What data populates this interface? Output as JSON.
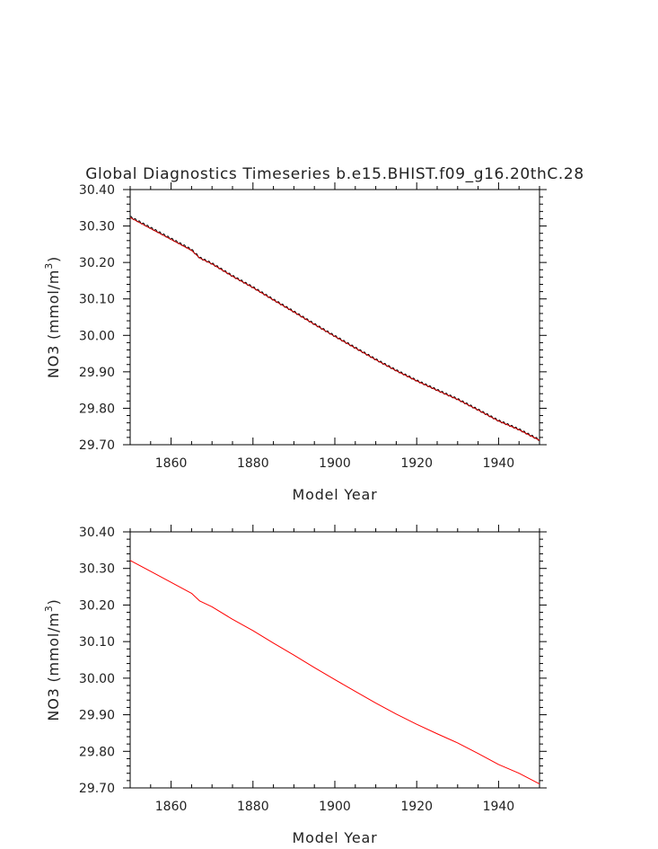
{
  "chart_data": [
    {
      "type": "line",
      "title": "Global Diagnostics Timeseries b.e15.BHIST.f09_g16.20thC.28",
      "xlabel": "Model Year",
      "ylabel_main": "NO3 (mmol/m",
      "ylabel_sup": "3",
      "ylabel_end": ")",
      "xlim": [
        1850,
        1950
      ],
      "ylim": [
        29.7,
        30.4
      ],
      "x_ticks": [
        "1860",
        "1880",
        "1900",
        "1920",
        "1940"
      ],
      "y_ticks": [
        "30.40",
        "30.30",
        "30.20",
        "30.10",
        "30.00",
        "29.90",
        "29.80",
        "29.70"
      ],
      "grid": false,
      "series": [
        {
          "color": "#000000",
          "seasonal_cycle": true,
          "x": [
            1850,
            1855,
            1860,
            1865,
            1867,
            1870,
            1875,
            1880,
            1885,
            1890,
            1895,
            1900,
            1905,
            1910,
            1915,
            1920,
            1925,
            1930,
            1935,
            1940,
            1945,
            1950
          ],
          "y": [
            30.325,
            30.295,
            30.265,
            30.235,
            30.213,
            30.197,
            30.163,
            30.132,
            30.098,
            30.065,
            30.031,
            29.998,
            29.966,
            29.934,
            29.904,
            29.876,
            29.85,
            29.825,
            29.796,
            29.766,
            29.742,
            29.713
          ]
        },
        {
          "color": "#d40000",
          "x": [
            1850,
            1855,
            1860,
            1865,
            1867,
            1870,
            1875,
            1880,
            1885,
            1890,
            1895,
            1900,
            1905,
            1910,
            1915,
            1920,
            1925,
            1930,
            1935,
            1940,
            1945,
            1950
          ],
          "y": [
            30.323,
            30.293,
            30.263,
            30.233,
            30.212,
            30.196,
            30.162,
            30.131,
            30.097,
            30.064,
            30.03,
            29.997,
            29.965,
            29.933,
            29.903,
            29.875,
            29.849,
            29.824,
            29.795,
            29.765,
            29.741,
            29.712
          ]
        }
      ]
    },
    {
      "type": "line",
      "title": "",
      "xlabel": "Model Year",
      "ylabel_main": "NO3 (mmol/m",
      "ylabel_sup": "3",
      "ylabel_end": ")",
      "xlim": [
        1850,
        1950
      ],
      "ylim": [
        29.7,
        30.4
      ],
      "x_ticks": [
        "1860",
        "1880",
        "1900",
        "1920",
        "1940"
      ],
      "y_ticks": [
        "30.40",
        "30.30",
        "30.20",
        "30.10",
        "30.00",
        "29.90",
        "29.80",
        "29.70"
      ],
      "grid": false,
      "series": [
        {
          "color": "#ff0000",
          "x": [
            1850,
            1855,
            1860,
            1865,
            1867,
            1870,
            1875,
            1880,
            1885,
            1890,
            1895,
            1900,
            1905,
            1910,
            1915,
            1920,
            1925,
            1930,
            1935,
            1940,
            1945,
            1950
          ],
          "y": [
            30.322,
            30.292,
            30.262,
            30.232,
            30.211,
            30.195,
            30.161,
            30.13,
            30.096,
            30.063,
            30.029,
            29.996,
            29.964,
            29.932,
            29.902,
            29.874,
            29.848,
            29.823,
            29.794,
            29.764,
            29.74,
            29.711
          ]
        }
      ]
    }
  ]
}
